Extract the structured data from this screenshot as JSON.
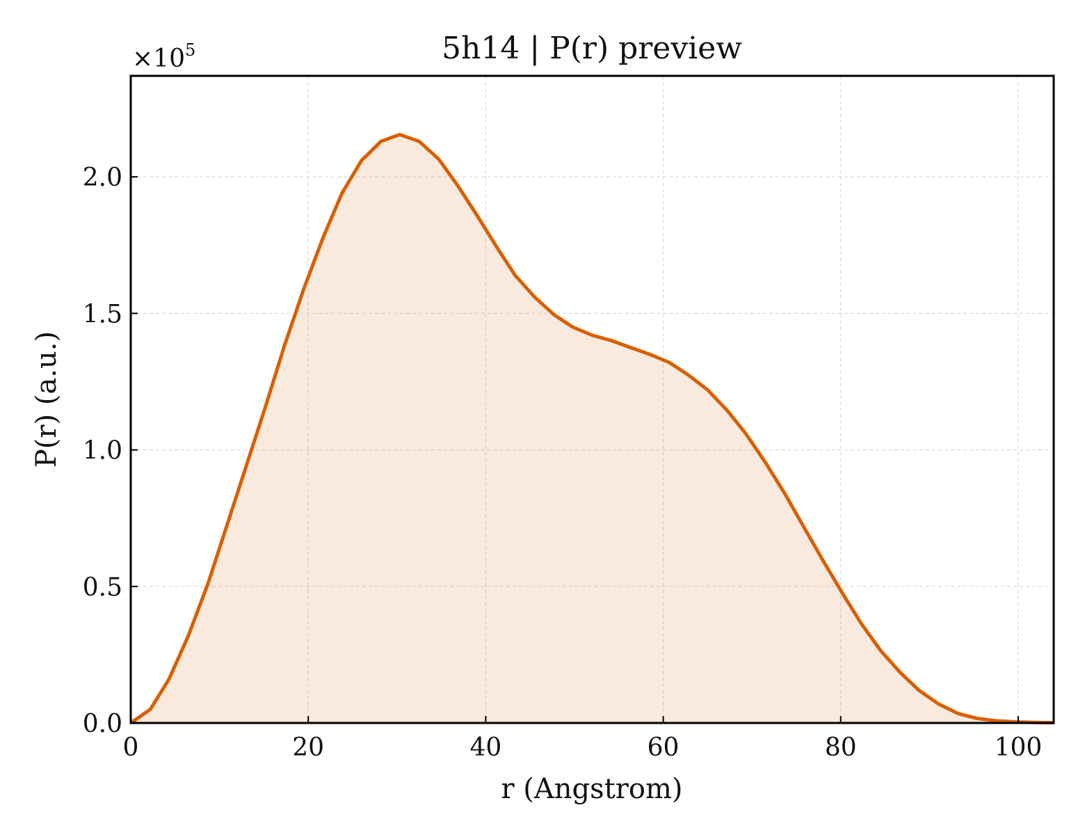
{
  "chart_data": {
    "type": "area",
    "title": "5h14 | P(r) preview",
    "xlabel": "r (Angstrom)",
    "ylabel": "P(r) (a.u.)",
    "y_multiplier_label": "×10",
    "y_multiplier_exponent": "5",
    "y_scale": 100000,
    "xlim": [
      0,
      104
    ],
    "ylim": [
      0,
      2.37
    ],
    "x_ticks": [
      0,
      20,
      40,
      60,
      80,
      100
    ],
    "x_tick_labels": [
      "0",
      "20",
      "40",
      "60",
      "80",
      "100"
    ],
    "y_ticks": [
      0,
      0.5,
      1.0,
      1.5,
      2.0
    ],
    "y_tick_labels": [
      "0.0",
      "0.5",
      "1.0",
      "1.5",
      "2.0"
    ],
    "grid": true,
    "colors": {
      "line": "#d95f02",
      "fill": "#d95f02",
      "fill_opacity": 0.13
    },
    "series": [
      {
        "x": [
          0,
          2.2,
          4.3,
          6.5,
          8.7,
          10.8,
          13.0,
          15.2,
          17.3,
          19.5,
          21.7,
          23.8,
          26.0,
          28.2,
          30.3,
          32.5,
          34.7,
          36.8,
          39.0,
          41.2,
          43.3,
          45.5,
          47.7,
          49.8,
          52.0,
          54.2,
          56.3,
          58.5,
          60.7,
          62.8,
          65.0,
          67.2,
          69.3,
          71.5,
          73.7,
          75.8,
          78.0,
          80.2,
          82.3,
          84.5,
          86.7,
          88.8,
          91.0,
          93.2,
          95.3,
          97.5,
          99.7,
          101.8,
          104.0
        ],
        "values": [
          0.0,
          0.05,
          0.16,
          0.32,
          0.51,
          0.72,
          0.94,
          1.16,
          1.38,
          1.59,
          1.78,
          1.94,
          2.06,
          2.13,
          2.155,
          2.13,
          2.065,
          1.97,
          1.86,
          1.745,
          1.64,
          1.56,
          1.495,
          1.45,
          1.42,
          1.4,
          1.375,
          1.35,
          1.32,
          1.275,
          1.22,
          1.145,
          1.06,
          0.955,
          0.84,
          0.72,
          0.595,
          0.475,
          0.365,
          0.265,
          0.185,
          0.12,
          0.07,
          0.035,
          0.017,
          0.008,
          0.004,
          0.002,
          0.001
        ]
      }
    ]
  }
}
